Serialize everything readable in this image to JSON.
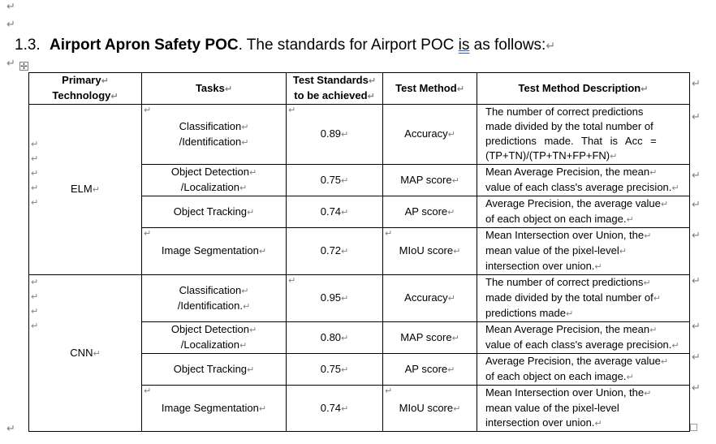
{
  "para_mark": "↵",
  "heading": {
    "number": "1.3.",
    "title_bold": "Airport Apron Safety POC",
    "text_before_is": ". The standards for Airport POC ",
    "is_word": "is",
    "text_after_is": " as follows:"
  },
  "table": {
    "headers": {
      "primary_technology_line1": "Primary",
      "primary_technology_line2": "Technology",
      "tasks": "Tasks",
      "test_standards_line1": "Test Standards",
      "test_standards_line2": "to be achieved",
      "test_method": "Test Method",
      "test_method_description": "Test Method Description"
    },
    "groups": [
      {
        "technology": "ELM",
        "rows": [
          {
            "task_line1": "Classification",
            "task_line2": "/Identification",
            "standard": "0.89",
            "method": "Accuracy",
            "desc_lines": [
              "The number of correct predictions",
              "made divided by the total number of",
              "predictions made. That is Acc =",
              "(TP+TN)/(TP+TN+FP+FN)"
            ]
          },
          {
            "task_line1": "Object Detection",
            "task_line2": "/Localization",
            "standard": "0.75",
            "method": "MAP score",
            "desc_lines": [
              "Mean Average Precision, the mean",
              "value of each class's average precision."
            ]
          },
          {
            "task_line1": "Object Tracking",
            "task_line2": "",
            "standard": "0.74",
            "method": "AP score",
            "desc_lines": [
              "Average Precision, the average value",
              "of each object on each image."
            ]
          },
          {
            "task_line1": "Image Segmentation",
            "task_line2": "",
            "standard": "0.72",
            "method": "MIoU score",
            "desc_lines": [
              "Mean Intersection over Union, the",
              "mean value of the pixel-level",
              "intersection over union."
            ]
          }
        ]
      },
      {
        "technology": "CNN",
        "rows": [
          {
            "task_line1": "Classification",
            "task_line2": "/Identification.",
            "standard": "0.95",
            "method": "Accuracy",
            "desc_lines": [
              "The number of correct predictions",
              "made divided by the total number of",
              "predictions made"
            ]
          },
          {
            "task_line1": "Object Detection",
            "task_line2": "/Localization",
            "standard": "0.80",
            "method": "MAP score",
            "desc_lines": [
              "Mean Average Precision, the mean",
              "value of each class's average precision."
            ]
          },
          {
            "task_line1": "Object Tracking",
            "task_line2": "",
            "standard": "0.75",
            "method": "AP score",
            "desc_lines": [
              "Average Precision, the average value",
              "of each object on each image."
            ]
          },
          {
            "task_line1": "Image Segmentation",
            "task_line2": "",
            "standard": "0.74",
            "method": "MIoU score",
            "desc_lines": [
              "Mean Intersection over Union, the",
              "mean value of the pixel-level",
              "intersection over union."
            ]
          }
        ]
      }
    ]
  }
}
